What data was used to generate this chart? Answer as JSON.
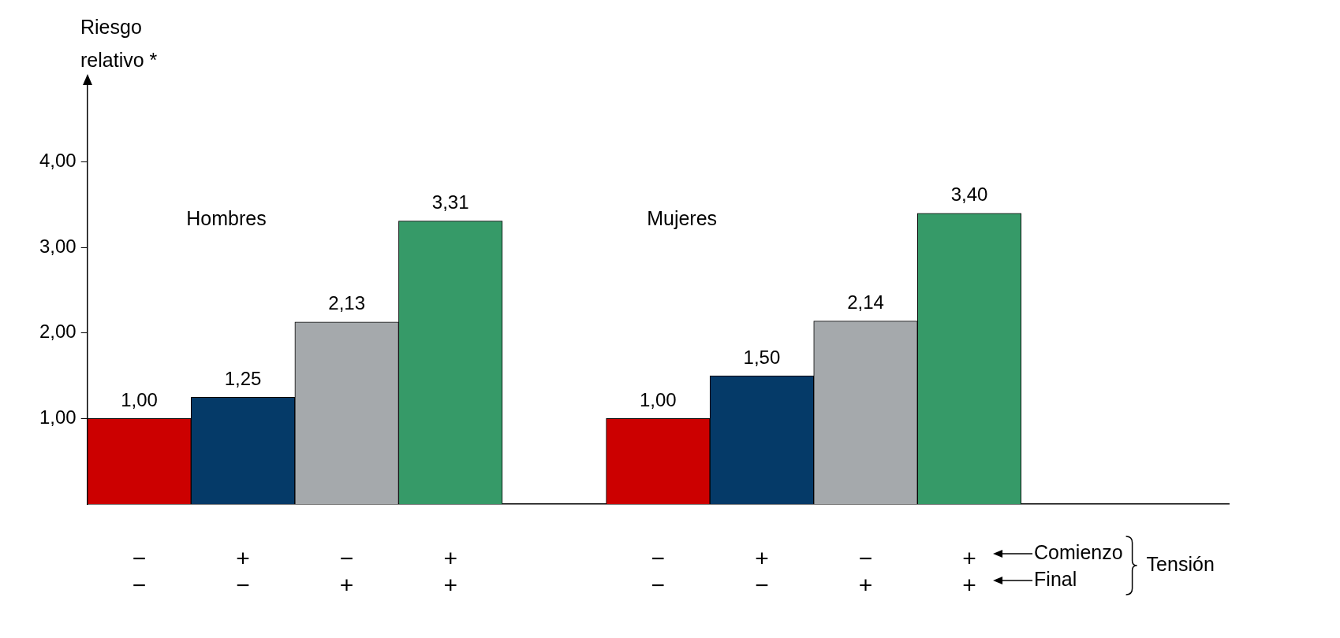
{
  "chart_data": {
    "type": "bar",
    "ylabel": "Riesgo\nrelativo *",
    "categories": [
      "−\n−",
      "+\n−",
      "−\n+",
      "+\n+",
      null,
      "−\n−",
      "+\n−",
      "−\n+",
      "+\n+",
      null,
      null
    ],
    "values": [
      1.0,
      1.25,
      2.13,
      3.31,
      null,
      1.0,
      1.5,
      2.14,
      3.4,
      null,
      null
    ],
    "colors": [
      "#cc0000",
      "#053a68",
      "#a5a9ac",
      "#369a68",
      "#ffffff",
      "#cc0000",
      "#053a68",
      "#a5a9ac",
      "#369a68",
      "#ffffff",
      "#ffffff"
    ],
    "value_labels": [
      "1,00",
      "1,25",
      "2,13",
      "3,31",
      null,
      "1,00",
      "1,50",
      "2,14",
      "3,40",
      null,
      null
    ],
    "ylim": [
      0,
      4.9
    ],
    "yticks": [
      {
        "value": 1,
        "label": "1,00"
      },
      {
        "value": 2,
        "label": "2,00"
      },
      {
        "value": 3,
        "label": "3,00"
      },
      {
        "value": 4,
        "label": "4,00"
      }
    ],
    "annotations": [
      "Hombres",
      "Mujeres",
      "Comienzo",
      "Final",
      "Tensión"
    ],
    "grid": false,
    "legend": false
  }
}
